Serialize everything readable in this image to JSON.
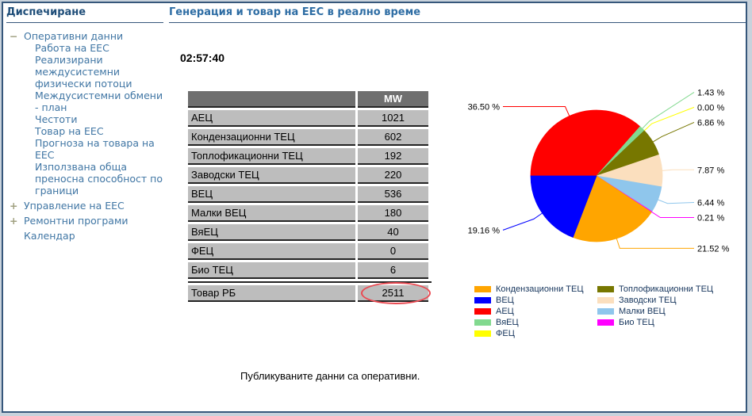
{
  "page": {
    "background": "#C8D2DC",
    "frame_border_color": "#36577B"
  },
  "sidebar": {
    "title": "Диспечиране",
    "title_color": "#1F4E79",
    "link_color": "#4076A4",
    "tree_icon_color": "#A0A080",
    "items": [
      {
        "label": "Оперативни данни",
        "icon": "minus",
        "level": 1
      },
      {
        "label": "Работа на ЕЕС",
        "icon": "none",
        "level": 2
      },
      {
        "label": "Реализирани междусистемни физически потоци",
        "icon": "none",
        "level": 2
      },
      {
        "label": "Междусистемни обмени - план",
        "icon": "none",
        "level": 2
      },
      {
        "label": "Честоти",
        "icon": "none",
        "level": 2
      },
      {
        "label": "Товар на ЕЕС",
        "icon": "none",
        "level": 2
      },
      {
        "label": "Прогноза на товара на ЕЕС",
        "icon": "none",
        "level": 2
      },
      {
        "label": "Използвана обща преносна способност по граници",
        "icon": "none",
        "level": 2
      },
      {
        "label": "Управление на ЕЕС",
        "icon": "plus",
        "level": 1
      },
      {
        "label": "Ремонтни програми",
        "icon": "plus",
        "level": 1
      },
      {
        "label": "Календар",
        "icon": "none",
        "level": 1
      }
    ]
  },
  "main": {
    "title": "Генерация и товар на ЕЕС в реално време",
    "title_color": "#2E6DA4",
    "clock": "02:57:40",
    "footnote": "Публикуваните данни са оперативни."
  },
  "table": {
    "value_header": "MW",
    "header_bg": "#6F6F6F",
    "row_bg": "#BDBDBD",
    "rows": [
      {
        "label": "АЕЦ",
        "value": "1021"
      },
      {
        "label": "Кондензационни ТЕЦ",
        "value": "602"
      },
      {
        "label": "Топлофикационни ТЕЦ",
        "value": "192"
      },
      {
        "label": "Заводски ТЕЦ",
        "value": "220"
      },
      {
        "label": "ВЕЦ",
        "value": "536"
      },
      {
        "label": "Малки ВЕЦ",
        "value": "180"
      },
      {
        "label": "ВяЕЦ",
        "value": "40"
      },
      {
        "label": "ФЕЦ",
        "value": "0"
      },
      {
        "label": "Био ТЕЦ",
        "value": "6"
      }
    ],
    "total_row": {
      "label": "Товар РБ",
      "value": "2511",
      "highlight_color": "#EA4A52"
    }
  },
  "chart_data": {
    "type": "pie",
    "start_angle_deg": 270,
    "legend_position": "bottom",
    "slices": [
      {
        "name": "АЕЦ",
        "mw": 1021,
        "pct": 36.5,
        "pct_label": "36.50 %",
        "color": "#FF0000"
      },
      {
        "name": "ВяЕЦ",
        "mw": 40,
        "pct": 1.43,
        "pct_label": "1.43 %",
        "color": "#82D98F"
      },
      {
        "name": "ФЕЦ",
        "mw": 0,
        "pct": 0.0,
        "pct_label": "0.00 %",
        "color": "#FFFF00"
      },
      {
        "name": "Топлофикационни ТЕЦ",
        "mw": 192,
        "pct": 6.86,
        "pct_label": "6.86 %",
        "color": "#777700"
      },
      {
        "name": "Заводски ТЕЦ",
        "mw": 220,
        "pct": 7.87,
        "pct_label": "7.87 %",
        "color": "#FBDFBE"
      },
      {
        "name": "Малки ВЕЦ",
        "mw": 180,
        "pct": 6.44,
        "pct_label": "6.44 %",
        "color": "#8FC6EC"
      },
      {
        "name": "Био ТЕЦ",
        "mw": 6,
        "pct": 0.21,
        "pct_label": "0.21 %",
        "color": "#FF00FF"
      },
      {
        "name": "Кондензационни ТЕЦ",
        "mw": 602,
        "pct": 21.52,
        "pct_label": "21.52 %",
        "color": "#FFA500"
      },
      {
        "name": "ВЕЦ",
        "mw": 536,
        "pct": 19.16,
        "pct_label": "19.16 %",
        "color": "#0000FF"
      }
    ],
    "legend_columns": [
      [
        "Кондензационни ТЕЦ",
        "ВЕЦ",
        "АЕЦ",
        "ВяЕЦ",
        "ФЕЦ"
      ],
      [
        "Топлофикационни ТЕЦ",
        "Заводски ТЕЦ",
        "Малки ВЕЦ",
        "Био ТЕЦ"
      ]
    ]
  }
}
